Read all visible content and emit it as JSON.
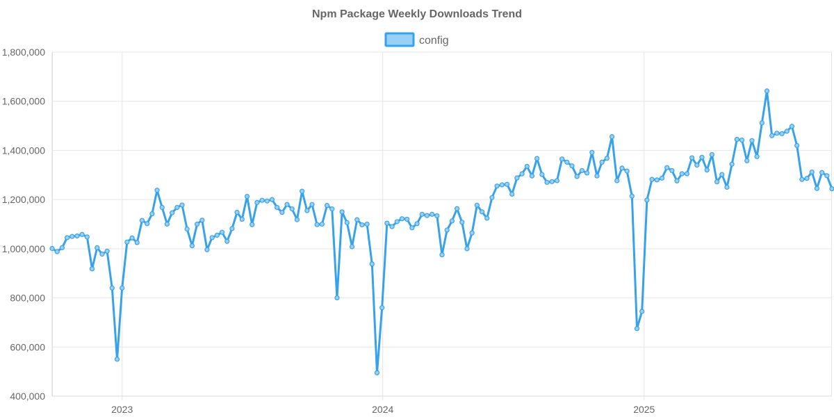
{
  "chart_data": {
    "type": "line",
    "title": "Npm Package Weekly Downloads Trend",
    "legend_position": "top",
    "grid": true,
    "ylim": [
      400000,
      1800000
    ],
    "y_ticks": [
      400000,
      600000,
      800000,
      1000000,
      1200000,
      1400000,
      1600000,
      1800000
    ],
    "y_tick_labels": [
      "400,000",
      "600,000",
      "800,000",
      "1,000,000",
      "1,200,000",
      "1,400,000",
      "1,600,000",
      "1,800,000"
    ],
    "xlim": [
      "2022-09-25",
      "2025-09-21"
    ],
    "x_ticks": [
      "2023-01-01",
      "2024-01-01",
      "2025-01-01"
    ],
    "x_tick_labels": [
      "2023",
      "2024",
      "2025"
    ],
    "colors": {
      "line": "#36a2eb",
      "fill": "#9ad0f5"
    },
    "series": [
      {
        "name": "config",
        "x": [
          "2022-09-25",
          "2022-10-02",
          "2022-10-09",
          "2022-10-16",
          "2022-10-23",
          "2022-10-30",
          "2022-11-06",
          "2022-11-13",
          "2022-11-20",
          "2022-11-27",
          "2022-12-04",
          "2022-12-11",
          "2022-12-18",
          "2022-12-25",
          "2023-01-01",
          "2023-01-08",
          "2023-01-15",
          "2023-01-22",
          "2023-01-29",
          "2023-02-05",
          "2023-02-12",
          "2023-02-19",
          "2023-02-26",
          "2023-03-05",
          "2023-03-12",
          "2023-03-19",
          "2023-03-26",
          "2023-04-02",
          "2023-04-09",
          "2023-04-16",
          "2023-04-23",
          "2023-04-30",
          "2023-05-07",
          "2023-05-14",
          "2023-05-21",
          "2023-05-28",
          "2023-06-04",
          "2023-06-11",
          "2023-06-18",
          "2023-06-25",
          "2023-07-02",
          "2023-07-09",
          "2023-07-16",
          "2023-07-23",
          "2023-07-30",
          "2023-08-06",
          "2023-08-13",
          "2023-08-20",
          "2023-08-27",
          "2023-09-03",
          "2023-09-10",
          "2023-09-17",
          "2023-09-24",
          "2023-10-01",
          "2023-10-08",
          "2023-10-15",
          "2023-10-22",
          "2023-10-29",
          "2023-11-05",
          "2023-11-12",
          "2023-11-19",
          "2023-11-26",
          "2023-12-03",
          "2023-12-10",
          "2023-12-17",
          "2023-12-24",
          "2023-12-31",
          "2024-01-07",
          "2024-01-14",
          "2024-01-21",
          "2024-01-28",
          "2024-02-04",
          "2024-02-11",
          "2024-02-18",
          "2024-02-25",
          "2024-03-03",
          "2024-03-10",
          "2024-03-17",
          "2024-03-24",
          "2024-03-31",
          "2024-04-07",
          "2024-04-14",
          "2024-04-21",
          "2024-04-28",
          "2024-05-05",
          "2024-05-12",
          "2024-05-19",
          "2024-05-26",
          "2024-06-02",
          "2024-06-09",
          "2024-06-16",
          "2024-06-23",
          "2024-06-30",
          "2024-07-07",
          "2024-07-14",
          "2024-07-21",
          "2024-07-28",
          "2024-08-04",
          "2024-08-11",
          "2024-08-18",
          "2024-08-25",
          "2024-09-01",
          "2024-09-08",
          "2024-09-15",
          "2024-09-22",
          "2024-09-29",
          "2024-10-06",
          "2024-10-13",
          "2024-10-20",
          "2024-10-27",
          "2024-11-03",
          "2024-11-10",
          "2024-11-17",
          "2024-11-24",
          "2024-12-01",
          "2024-12-08",
          "2024-12-15",
          "2024-12-22",
          "2024-12-29",
          "2025-01-05",
          "2025-01-12",
          "2025-01-19",
          "2025-01-26",
          "2025-02-02",
          "2025-02-09",
          "2025-02-16",
          "2025-02-23",
          "2025-03-02",
          "2025-03-09",
          "2025-03-16",
          "2025-03-23",
          "2025-03-30",
          "2025-04-06",
          "2025-04-13",
          "2025-04-20",
          "2025-04-27",
          "2025-05-04",
          "2025-05-11",
          "2025-05-18",
          "2025-05-25",
          "2025-06-01",
          "2025-06-08",
          "2025-06-15",
          "2025-06-22",
          "2025-06-29",
          "2025-07-06",
          "2025-07-13",
          "2025-07-20",
          "2025-07-27",
          "2025-08-03",
          "2025-08-10",
          "2025-08-17",
          "2025-08-24",
          "2025-08-31",
          "2025-09-07",
          "2025-09-14",
          "2025-09-21"
        ],
        "values": [
          1001000,
          988000,
          1004000,
          1045000,
          1050000,
          1052000,
          1058000,
          1048000,
          918000,
          1004000,
          978000,
          990000,
          840000,
          550000,
          840000,
          1027000,
          1044000,
          1025000,
          1115000,
          1102000,
          1142000,
          1238000,
          1168000,
          1100000,
          1146000,
          1168000,
          1178000,
          1080000,
          1012000,
          1100000,
          1116000,
          996000,
          1045000,
          1055000,
          1067000,
          1030000,
          1082000,
          1148000,
          1120000,
          1213000,
          1098000,
          1188000,
          1197000,
          1194000,
          1200000,
          1168000,
          1148000,
          1180000,
          1162000,
          1118000,
          1234000,
          1155000,
          1180000,
          1098000,
          1100000,
          1176000,
          1162000,
          800000,
          1150000,
          1106000,
          1008000,
          1118000,
          1097000,
          1100000,
          938000,
          495000,
          760000,
          1104000,
          1090000,
          1110000,
          1122000,
          1120000,
          1085000,
          1102000,
          1140000,
          1135000,
          1140000,
          1134000,
          975000,
          1076000,
          1113000,
          1163000,
          1108000,
          1000000,
          1064000,
          1177000,
          1150000,
          1124000,
          1208000,
          1255000,
          1260000,
          1262000,
          1222000,
          1288000,
          1305000,
          1335000,
          1296000,
          1367000,
          1302000,
          1270000,
          1273000,
          1277000,
          1365000,
          1352000,
          1337000,
          1294000,
          1318000,
          1308000,
          1392000,
          1296000,
          1352000,
          1368000,
          1456000,
          1277000,
          1328000,
          1316000,
          1214000,
          675000,
          745000,
          1198000,
          1282000,
          1280000,
          1287000,
          1330000,
          1318000,
          1276000,
          1305000,
          1305000,
          1370000,
          1340000,
          1372000,
          1320000,
          1383000,
          1272000,
          1302000,
          1250000,
          1344000,
          1445000,
          1442000,
          1358000,
          1440000,
          1375000,
          1512000,
          1642000,
          1460000,
          1470000,
          1468000,
          1478000,
          1498000,
          1420000,
          1282000,
          1286000,
          1312000,
          1245000,
          1310000,
          1297000,
          1244000
        ]
      }
    ]
  }
}
